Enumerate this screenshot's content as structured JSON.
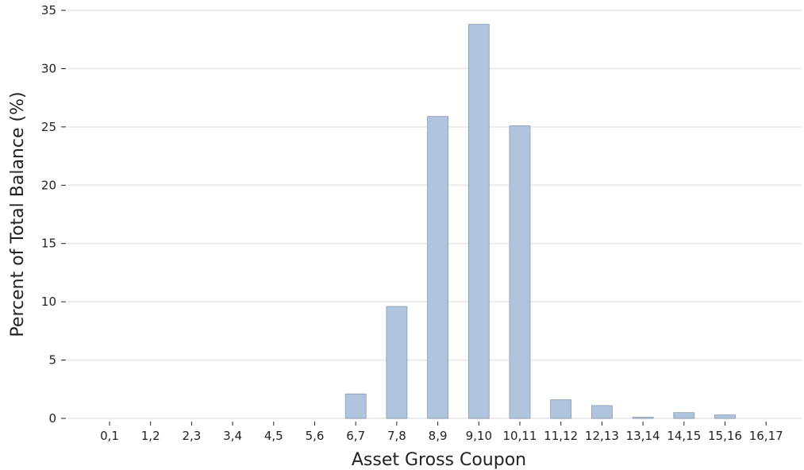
{
  "chart_data": {
    "type": "bar",
    "title": "",
    "xlabel": "Asset Gross Coupon",
    "ylabel": "Percent of Total Balance (%)",
    "categories": [
      "0,1",
      "1,2",
      "2,3",
      "3,4",
      "4,5",
      "5,6",
      "6,7",
      "7,8",
      "8,9",
      "9,10",
      "10,11",
      "11,12",
      "12,13",
      "13,14",
      "14,15",
      "15,16",
      "16,17"
    ],
    "values": [
      0,
      0,
      0,
      0,
      0,
      0,
      2.1,
      9.6,
      25.9,
      33.8,
      25.1,
      1.6,
      1.1,
      0.1,
      0.5,
      0.3,
      0
    ],
    "ylim": [
      0,
      35
    ],
    "yticks": [
      0,
      5,
      10,
      15,
      20,
      25,
      30,
      35
    ],
    "grid": "horizontal",
    "colors": {
      "bar_fill": "#b0c4de",
      "bar_stroke": "#8a9bb0",
      "grid": "#ebebeb",
      "text": "#222222"
    }
  }
}
